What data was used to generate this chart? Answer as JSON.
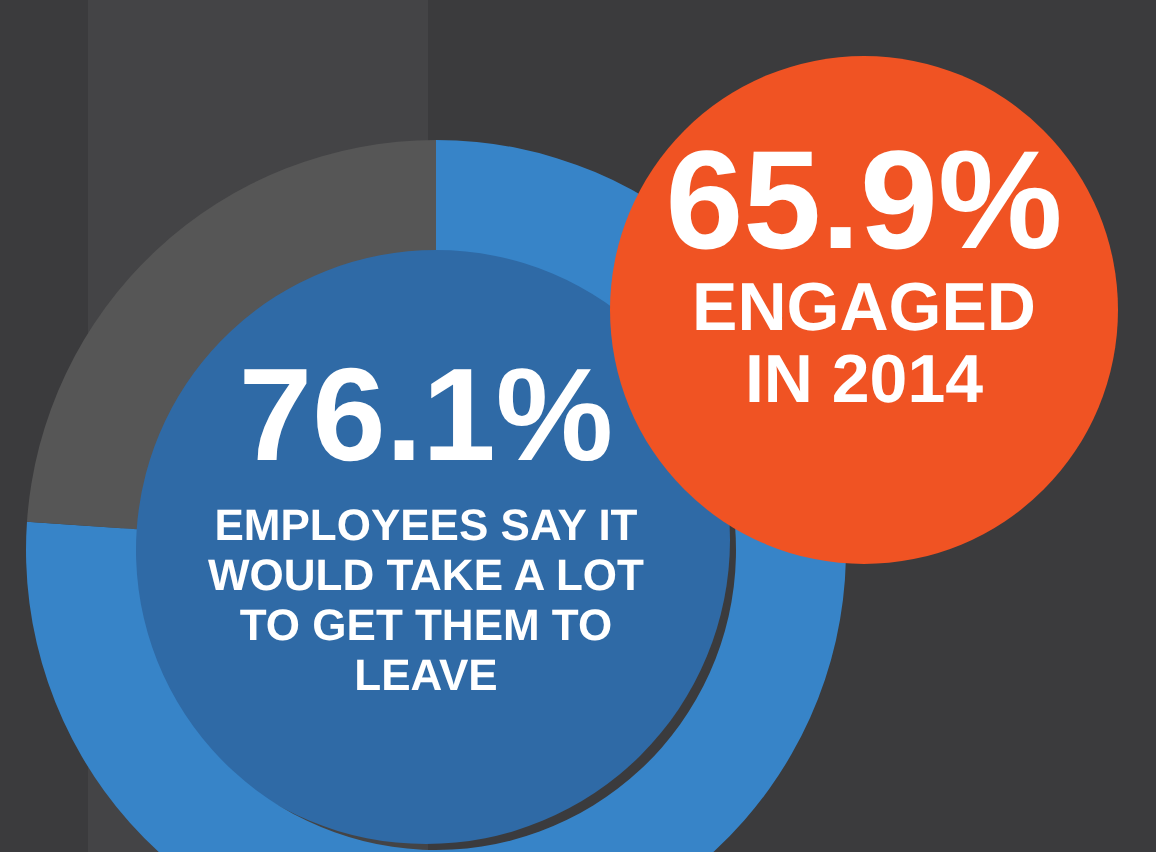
{
  "chart_data": {
    "type": "donut",
    "categories": [
      null,
      null
    ],
    "values": [
      76.1,
      23.9
    ],
    "colors": [
      "#3784c8",
      "#565656"
    ],
    "value_labels": [
      "76.1%",
      null
    ],
    "annotations": [
      "EMPLOYEES SAY IT WOULD TAKE A LOT TO GET THEM TO LEAVE",
      "65.9%",
      "ENGAGED IN 2014"
    ]
  }
}
